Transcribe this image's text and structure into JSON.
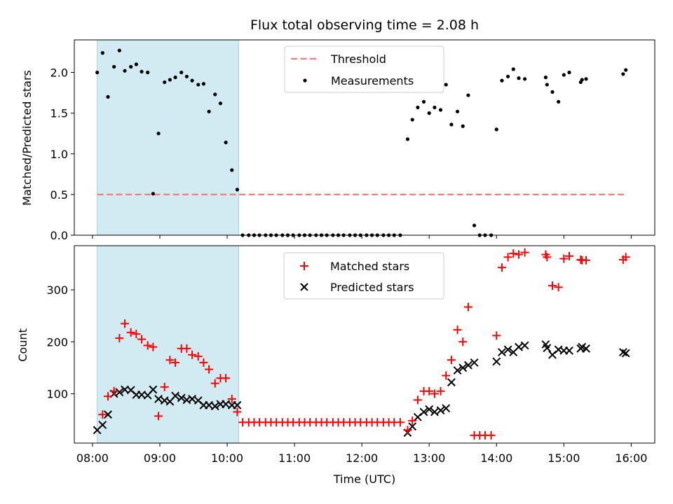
{
  "chart_data": {
    "title": "Flux total observing time = 2.08 h",
    "shaded_region": {
      "start_hour": 8.07,
      "end_hour": 10.17,
      "color": "#add8e6"
    },
    "x_axis": {
      "label": "Time (UTC)",
      "range_hours": [
        7.73,
        16.35
      ],
      "ticks": [
        {
          "hour": 8,
          "label": "08:00"
        },
        {
          "hour": 9,
          "label": "09:00"
        },
        {
          "hour": 10,
          "label": "10:00"
        },
        {
          "hour": 11,
          "label": "11:00"
        },
        {
          "hour": 12,
          "label": "12:00"
        },
        {
          "hour": 13,
          "label": "13:00"
        },
        {
          "hour": 14,
          "label": "14:00"
        },
        {
          "hour": 15,
          "label": "15:00"
        },
        {
          "hour": 16,
          "label": "16:00"
        }
      ]
    },
    "top_panel": {
      "type": "scatter",
      "ylabel": "Matched/Predicted stars",
      "ylim": [
        0,
        2.4
      ],
      "yticks": [
        "0.0",
        "0.5",
        "1.0",
        "1.5",
        "2.0"
      ],
      "legend": {
        "placement": "upper-center",
        "entries": [
          "Threshold",
          "Measurements"
        ]
      },
      "threshold": {
        "name": "Threshold",
        "value": 0.5,
        "x_range": [
          8.07,
          15.9
        ],
        "color": "#ff0000",
        "alpha": 0.5
      },
      "measurements": {
        "name": "Measurements",
        "color": "#000000",
        "points": [
          [
            8.07,
            2.0
          ],
          [
            8.15,
            2.24
          ],
          [
            8.23,
            1.7
          ],
          [
            8.32,
            2.07
          ],
          [
            8.4,
            2.27
          ],
          [
            8.48,
            2.02
          ],
          [
            8.57,
            2.07
          ],
          [
            8.65,
            2.1
          ],
          [
            8.73,
            2.01
          ],
          [
            8.82,
            2.0
          ],
          [
            8.9,
            0.51
          ],
          [
            8.98,
            1.25
          ],
          [
            9.07,
            1.88
          ],
          [
            9.15,
            1.91
          ],
          [
            9.23,
            1.94
          ],
          [
            9.32,
            2.0
          ],
          [
            9.4,
            1.95
          ],
          [
            9.48,
            1.9
          ],
          [
            9.57,
            1.85
          ],
          [
            9.65,
            1.86
          ],
          [
            9.73,
            1.52
          ],
          [
            9.82,
            1.73
          ],
          [
            9.9,
            1.62
          ],
          [
            9.98,
            1.14
          ],
          [
            10.07,
            0.8
          ],
          [
            10.15,
            0.56
          ],
          [
            10.23,
            0
          ],
          [
            10.32,
            0
          ],
          [
            10.4,
            0
          ],
          [
            10.48,
            0
          ],
          [
            10.57,
            0
          ],
          [
            10.65,
            0
          ],
          [
            10.73,
            0
          ],
          [
            10.82,
            0
          ],
          [
            10.9,
            0
          ],
          [
            10.98,
            0
          ],
          [
            11.07,
            0
          ],
          [
            11.15,
            0
          ],
          [
            11.23,
            0
          ],
          [
            11.32,
            0
          ],
          [
            11.4,
            0
          ],
          [
            11.48,
            0
          ],
          [
            11.57,
            0
          ],
          [
            11.65,
            0
          ],
          [
            11.73,
            0
          ],
          [
            11.82,
            0
          ],
          [
            11.9,
            0
          ],
          [
            11.98,
            0
          ],
          [
            12.07,
            0
          ],
          [
            12.15,
            0
          ],
          [
            12.23,
            0
          ],
          [
            12.32,
            0
          ],
          [
            12.4,
            0
          ],
          [
            12.48,
            0
          ],
          [
            12.57,
            0
          ],
          [
            12.68,
            1.18
          ],
          [
            12.75,
            1.42
          ],
          [
            12.83,
            1.57
          ],
          [
            12.92,
            1.64
          ],
          [
            13.0,
            1.5
          ],
          [
            13.08,
            1.57
          ],
          [
            13.17,
            1.54
          ],
          [
            13.25,
            1.85
          ],
          [
            13.33,
            1.36
          ],
          [
            13.42,
            1.52
          ],
          [
            13.5,
            1.34
          ],
          [
            13.58,
            1.72
          ],
          [
            13.67,
            0.12
          ],
          [
            13.75,
            0
          ],
          [
            13.83,
            0
          ],
          [
            13.92,
            0
          ],
          [
            14.0,
            1.3
          ],
          [
            14.08,
            1.9
          ],
          [
            14.17,
            1.95
          ],
          [
            14.25,
            2.04
          ],
          [
            14.33,
            1.93
          ],
          [
            14.42,
            1.92
          ],
          [
            14.73,
            1.94
          ],
          [
            14.75,
            1.85
          ],
          [
            14.83,
            1.76
          ],
          [
            14.92,
            1.64
          ],
          [
            15.0,
            1.97
          ],
          [
            15.08,
            2.0
          ],
          [
            15.25,
            1.88
          ],
          [
            15.27,
            1.91
          ],
          [
            15.33,
            1.92
          ],
          [
            15.88,
            1.98
          ],
          [
            15.92,
            2.03
          ]
        ]
      }
    },
    "bottom_panel": {
      "type": "scatter",
      "ylabel": "Count",
      "ylim": [
        5,
        385
      ],
      "yticks": [
        "100",
        "200",
        "300"
      ],
      "legend": {
        "placement": "upper-center",
        "entries": [
          "Matched stars",
          "Predicted stars"
        ]
      },
      "series": [
        {
          "name": "Matched stars",
          "marker": "+",
          "color": "#ff0000",
          "points": [
            [
              8.15,
              60
            ],
            [
              8.23,
              95
            ],
            [
              8.32,
              105
            ],
            [
              8.4,
              207
            ],
            [
              8.48,
              235
            ],
            [
              8.57,
              218
            ],
            [
              8.65,
              215
            ],
            [
              8.73,
              205
            ],
            [
              8.82,
              193
            ],
            [
              8.9,
              190
            ],
            [
              8.98,
              57
            ],
            [
              9.07,
              113
            ],
            [
              9.15,
              165
            ],
            [
              9.23,
              160
            ],
            [
              9.32,
              187
            ],
            [
              9.4,
              187
            ],
            [
              9.48,
              175
            ],
            [
              9.57,
              172
            ],
            [
              9.65,
              160
            ],
            [
              9.73,
              147
            ],
            [
              9.82,
              120
            ],
            [
              9.9,
              130
            ],
            [
              9.98,
              130
            ],
            [
              10.07,
              90
            ],
            [
              10.15,
              65
            ],
            [
              10.23,
              45
            ],
            [
              10.32,
              45
            ],
            [
              10.4,
              45
            ],
            [
              10.48,
              45
            ],
            [
              10.57,
              45
            ],
            [
              10.65,
              45
            ],
            [
              10.73,
              45
            ],
            [
              10.82,
              45
            ],
            [
              10.9,
              45
            ],
            [
              10.98,
              45
            ],
            [
              11.07,
              45
            ],
            [
              11.15,
              45
            ],
            [
              11.23,
              45
            ],
            [
              11.32,
              45
            ],
            [
              11.4,
              45
            ],
            [
              11.48,
              45
            ],
            [
              11.57,
              45
            ],
            [
              11.65,
              45
            ],
            [
              11.73,
              45
            ],
            [
              11.82,
              45
            ],
            [
              11.9,
              45
            ],
            [
              11.98,
              45
            ],
            [
              12.07,
              45
            ],
            [
              12.15,
              45
            ],
            [
              12.23,
              45
            ],
            [
              12.32,
              45
            ],
            [
              12.4,
              45
            ],
            [
              12.48,
              45
            ],
            [
              12.57,
              45
            ],
            [
              12.68,
              30
            ],
            [
              12.75,
              48
            ],
            [
              12.83,
              88
            ],
            [
              12.92,
              105
            ],
            [
              13.0,
              105
            ],
            [
              13.08,
              100
            ],
            [
              13.17,
              105
            ],
            [
              13.25,
              135
            ],
            [
              13.33,
              165
            ],
            [
              13.42,
              223
            ],
            [
              13.5,
              200
            ],
            [
              13.58,
              267
            ],
            [
              13.67,
              20
            ],
            [
              13.75,
              20
            ],
            [
              13.83,
              20
            ],
            [
              13.92,
              20
            ],
            [
              14.0,
              212
            ],
            [
              14.08,
              343
            ],
            [
              14.17,
              363
            ],
            [
              14.25,
              370
            ],
            [
              14.33,
              368
            ],
            [
              14.42,
              372
            ],
            [
              14.73,
              368
            ],
            [
              14.75,
              363
            ],
            [
              14.83,
              308
            ],
            [
              14.92,
              305
            ],
            [
              15.0,
              360
            ],
            [
              15.08,
              365
            ],
            [
              15.25,
              358
            ],
            [
              15.27,
              357
            ],
            [
              15.33,
              357
            ],
            [
              15.88,
              358
            ],
            [
              15.92,
              363
            ]
          ]
        },
        {
          "name": "Predicted stars",
          "marker": "x",
          "color": "#000000",
          "points": [
            [
              8.07,
              30
            ],
            [
              8.15,
              40
            ],
            [
              8.23,
              60
            ],
            [
              8.32,
              100
            ],
            [
              8.4,
              103
            ],
            [
              8.48,
              108
            ],
            [
              8.57,
              107
            ],
            [
              8.65,
              98
            ],
            [
              8.73,
              98
            ],
            [
              8.82,
              97
            ],
            [
              8.9,
              108
            ],
            [
              8.98,
              90
            ],
            [
              9.07,
              87
            ],
            [
              9.15,
              85
            ],
            [
              9.23,
              96
            ],
            [
              9.32,
              92
            ],
            [
              9.4,
              88
            ],
            [
              9.48,
              90
            ],
            [
              9.57,
              87
            ],
            [
              9.65,
              78
            ],
            [
              9.73,
              78
            ],
            [
              9.82,
              76
            ],
            [
              9.9,
              80
            ],
            [
              9.98,
              80
            ],
            [
              10.07,
              78
            ],
            [
              10.15,
              78
            ],
            [
              12.68,
              25
            ],
            [
              12.75,
              37
            ],
            [
              12.83,
              55
            ],
            [
              12.92,
              65
            ],
            [
              13.0,
              70
            ],
            [
              13.08,
              65
            ],
            [
              13.17,
              68
            ],
            [
              13.25,
              72
            ],
            [
              13.33,
              122
            ],
            [
              13.42,
              145
            ],
            [
              13.5,
              150
            ],
            [
              13.58,
              155
            ],
            [
              13.67,
              160
            ],
            [
              14.0,
              162
            ],
            [
              14.08,
              180
            ],
            [
              14.17,
              185
            ],
            [
              14.25,
              180
            ],
            [
              14.33,
              190
            ],
            [
              14.42,
              193
            ],
            [
              14.73,
              195
            ],
            [
              14.75,
              188
            ],
            [
              14.83,
              175
            ],
            [
              14.92,
              185
            ],
            [
              15.0,
              183
            ],
            [
              15.08,
              183
            ],
            [
              15.25,
              187
            ],
            [
              15.27,
              190
            ],
            [
              15.33,
              187
            ],
            [
              15.88,
              180
            ],
            [
              15.92,
              178
            ]
          ]
        }
      ]
    }
  }
}
